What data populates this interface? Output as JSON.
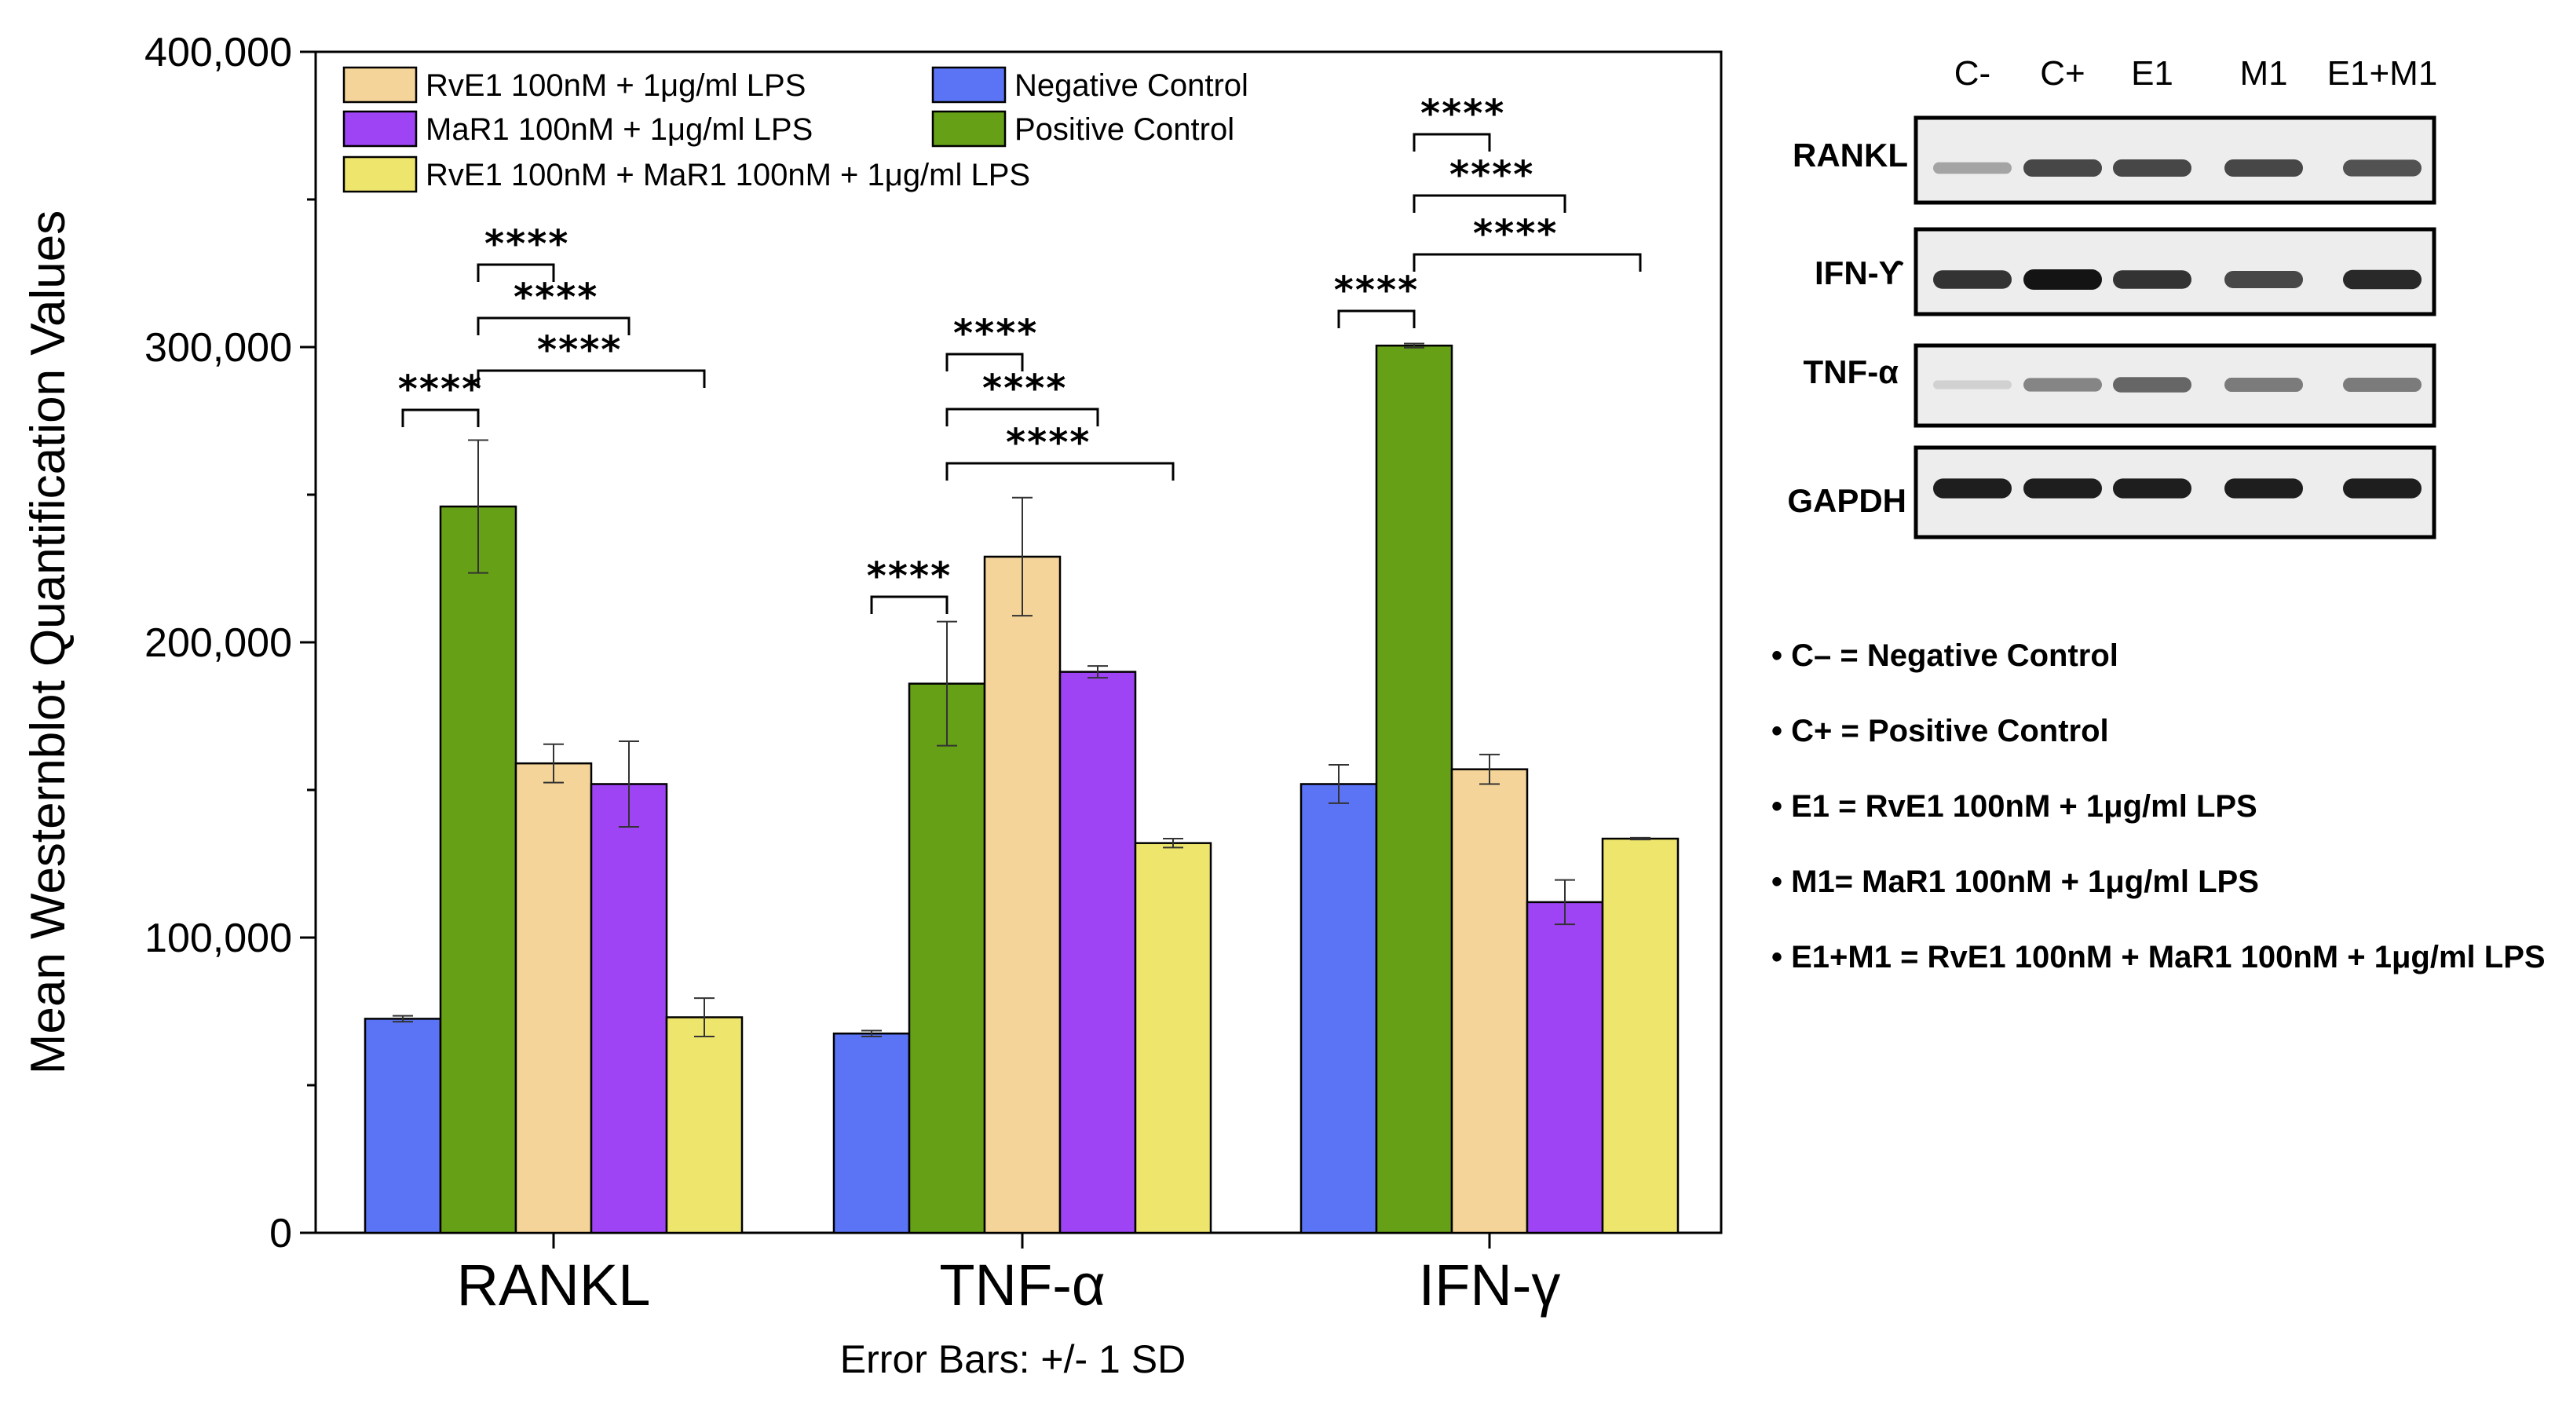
{
  "chart_data": {
    "type": "bar",
    "title": "",
    "xlabel": "",
    "ylabel": "Mean Westernblot Quantification Values",
    "ylim": [
      0,
      400000
    ],
    "yticks": [
      {
        "value": 0,
        "label": "0"
      },
      {
        "value": 100000,
        "label": "100,000"
      },
      {
        "value": 200000,
        "label": "200,000"
      },
      {
        "value": 300000,
        "label": "300,000"
      },
      {
        "value": 400000,
        "label": "400,000"
      }
    ],
    "categories": [
      "RANKL",
      "TNF-α",
      "IFN-γ"
    ],
    "series": [
      {
        "name": "Negative Control",
        "color": "#5B74F5",
        "values": [
          72500,
          67500,
          152000
        ],
        "errors": [
          1000,
          1000,
          6500
        ]
      },
      {
        "name": "Positive Control",
        "color": "#66A017",
        "values": [
          246000,
          186000,
          300500
        ],
        "errors": [
          22500,
          21000,
          700
        ]
      },
      {
        "name": "RvE1 100nM + 1μg/ml LPS",
        "color": "#F5D499",
        "values": [
          159000,
          229000,
          157000
        ],
        "errors": [
          6500,
          20000,
          5000
        ]
      },
      {
        "name": "MaR1 100nM + 1μg/ml LPS",
        "color": "#9E44F5",
        "values": [
          152000,
          190000,
          112000
        ],
        "errors": [
          14500,
          2000,
          7500
        ]
      },
      {
        "name": "RvE1 100nM + MaR1 100nM + 1μg/ml LPS",
        "color": "#EEE66C",
        "values": [
          73000,
          132000,
          133500
        ],
        "errors": [
          6500,
          1500,
          300
        ]
      }
    ],
    "significance": [
      {
        "category": 0,
        "from": 0,
        "to": 1,
        "label": "****"
      },
      {
        "category": 0,
        "from": 1,
        "to": 2,
        "label": "****"
      },
      {
        "category": 0,
        "from": 1,
        "to": 3,
        "label": "****"
      },
      {
        "category": 0,
        "from": 1,
        "to": 4,
        "label": "****"
      },
      {
        "category": 1,
        "from": 0,
        "to": 1,
        "label": "****"
      },
      {
        "category": 1,
        "from": 1,
        "to": 2,
        "label": "****"
      },
      {
        "category": 1,
        "from": 1,
        "to": 3,
        "label": "****"
      },
      {
        "category": 1,
        "from": 1,
        "to": 4,
        "label": "****"
      },
      {
        "category": 2,
        "from": 0,
        "to": 1,
        "label": "****"
      },
      {
        "category": 2,
        "from": 1,
        "to": 2,
        "label": "****"
      },
      {
        "category": 2,
        "from": 1,
        "to": 3,
        "label": "****"
      },
      {
        "category": 2,
        "from": 1,
        "to": 4,
        "label": "****"
      }
    ],
    "legend_order": [
      2,
      0,
      3,
      1,
      4
    ],
    "legend_placement": "top-left",
    "error_note": "Error Bars: +/- 1 SD"
  },
  "blot": {
    "lanes": [
      "C-",
      "C+",
      "E1",
      "M1",
      "E1+M1"
    ],
    "rows": [
      {
        "label": "RANKL",
        "intensities": [
          0.3,
          0.75,
          0.75,
          0.75,
          0.7
        ]
      },
      {
        "label": "IFN-ϒ",
        "intensities": [
          0.85,
          1.0,
          0.85,
          0.75,
          0.9
        ]
      },
      {
        "label": "TNF-α",
        "intensities": [
          0.08,
          0.45,
          0.6,
          0.5,
          0.5
        ]
      },
      {
        "label": "GAPDH",
        "intensities": [
          0.95,
          0.95,
          0.95,
          0.95,
          0.95
        ]
      }
    ]
  },
  "abbreviations": [
    "• C–  = Negative Control",
    "• C+ = Positive Control",
    "• E1 = RvE1 100nM + 1μg/ml LPS",
    "• M1= MaR1 100nM + 1μg/ml LPS",
    "• E1+M1 = RvE1 100nM + MaR1 100nM + 1μg/ml LPS"
  ]
}
